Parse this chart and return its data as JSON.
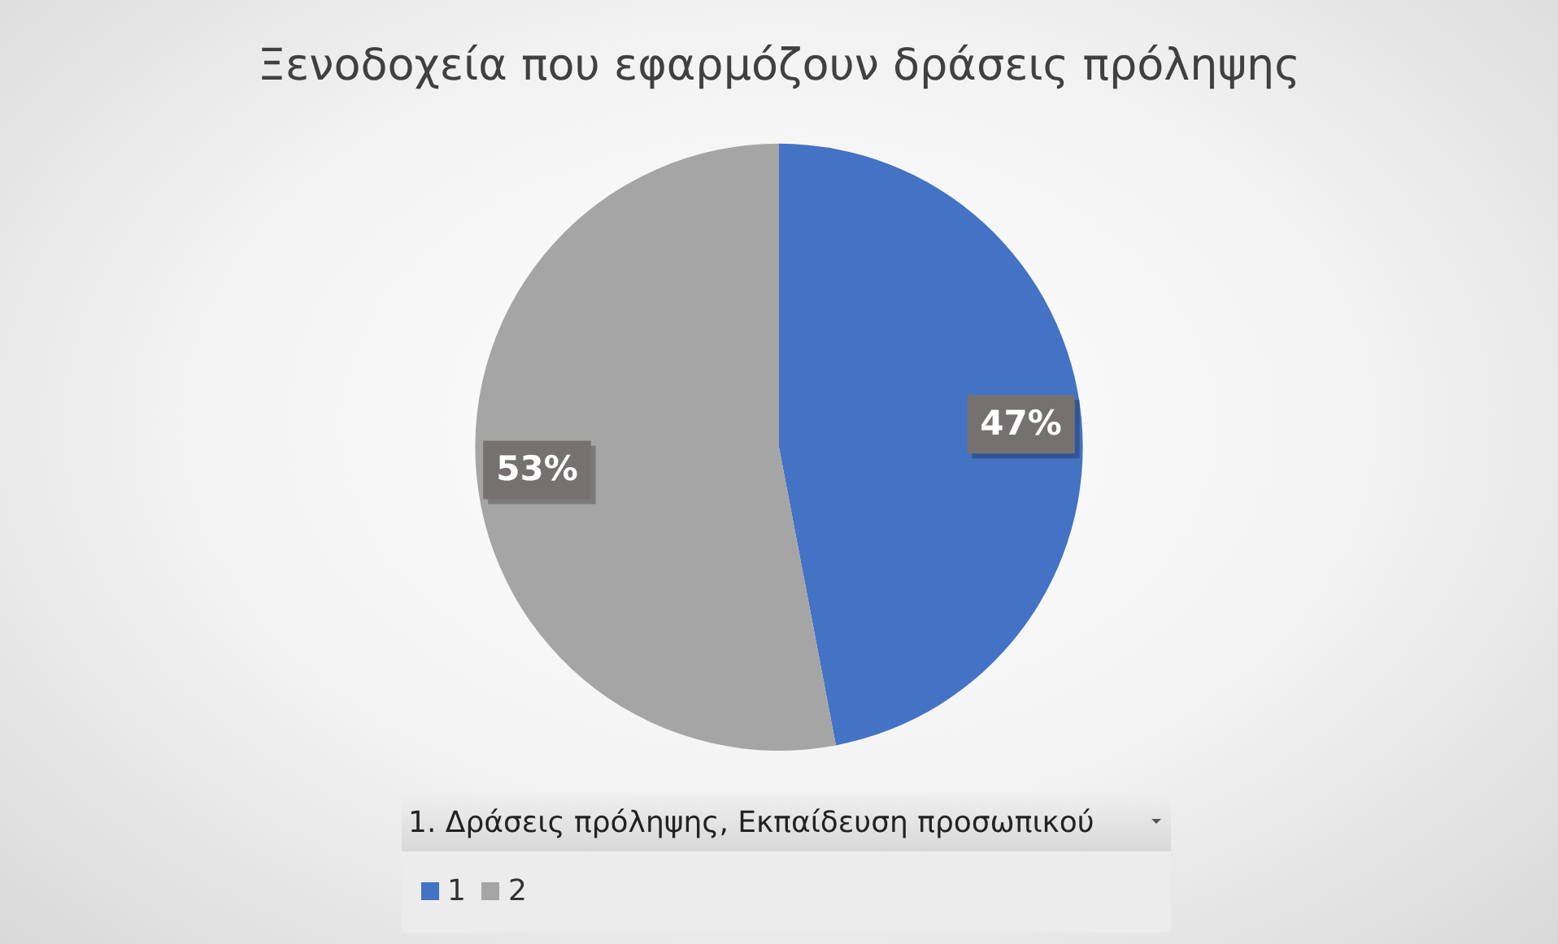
{
  "chart_data": {
    "type": "pie",
    "title": "Ξενοδοχεία που εφαρμόζουν δράσεις πρόληψης",
    "legend_title": "1. Δράσεις πρόληψης, Εκπαίδευση προσωπικού",
    "categories": [
      "1",
      "2"
    ],
    "values": [
      47,
      53
    ],
    "colors": [
      "#4472c4",
      "#a5a5a5"
    ],
    "value_labels": [
      "47%",
      "53%"
    ],
    "legend": "bottom"
  }
}
